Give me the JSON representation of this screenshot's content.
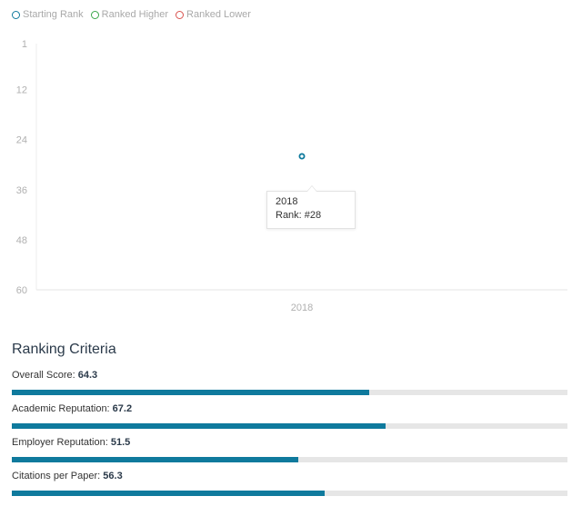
{
  "legend": {
    "items": [
      {
        "label": "Starting Rank",
        "color": "#0f7a9d"
      },
      {
        "label": "Ranked Higher",
        "color": "#3aa64a"
      },
      {
        "label": "Ranked Lower",
        "color": "#d9534f"
      }
    ]
  },
  "chart_data": {
    "type": "scatter",
    "y_ticks": [
      "1",
      "12",
      "24",
      "36",
      "48",
      "60"
    ],
    "y_min": 1,
    "y_max": 60,
    "y_inverted": true,
    "x_categories": [
      "2018"
    ],
    "points": [
      {
        "x": "2018",
        "y": 28
      }
    ],
    "point_color": "#0f7a9d",
    "grid": false
  },
  "tooltip": {
    "year": "2018",
    "rank": "Rank: #28"
  },
  "criteria": {
    "title": "Ranking Criteria",
    "items": [
      {
        "label": "Overall Score: ",
        "value": "64.3",
        "score": 64.3
      },
      {
        "label": "Academic Reputation: ",
        "value": "67.2",
        "score": 67.2
      },
      {
        "label": "Employer Reputation: ",
        "value": "51.5",
        "score": 51.5
      },
      {
        "label": "Citations per Paper: ",
        "value": "56.3",
        "score": 56.3
      }
    ],
    "bar_color": "#0f7a9d",
    "track_color": "#e6e6e6"
  }
}
